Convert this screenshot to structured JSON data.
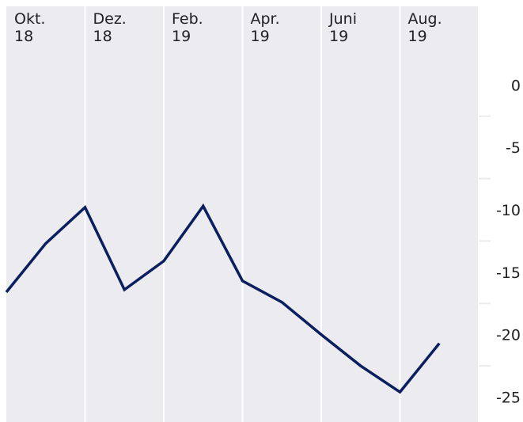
{
  "chart_data": {
    "type": "line",
    "x": [
      0,
      1,
      2,
      3,
      4,
      5,
      6,
      7,
      8,
      9,
      10,
      11
    ],
    "series": [
      {
        "color": "#0b1f5e",
        "values": [
          -16.6,
          -12.7,
          -9.8,
          -16.4,
          -14.1,
          -9.7,
          -15.7,
          -17.4,
          -20.0,
          -22.5,
          -24.6,
          -20.7
        ]
      }
    ],
    "xlim": [
      0,
      12
    ],
    "xticks": [
      {
        "value": 0,
        "label": "Okt. 18"
      },
      {
        "value": 2,
        "label": "Dez. 18"
      },
      {
        "value": 4,
        "label": "Feb. 19"
      },
      {
        "value": 6,
        "label": "Apr. 19"
      },
      {
        "value": 8,
        "label": "Juni 19"
      },
      {
        "value": 10,
        "label": "Aug. 19"
      },
      {
        "value": 12,
        "label": ""
      }
    ],
    "ylim": [
      -27,
      6.3
    ],
    "yticks": [
      0,
      -5,
      -10,
      -15,
      -20,
      -25
    ],
    "yminorticks": [
      -2.5,
      -7.5,
      -12.5,
      -17.5,
      -22.5
    ],
    "grid": true
  }
}
